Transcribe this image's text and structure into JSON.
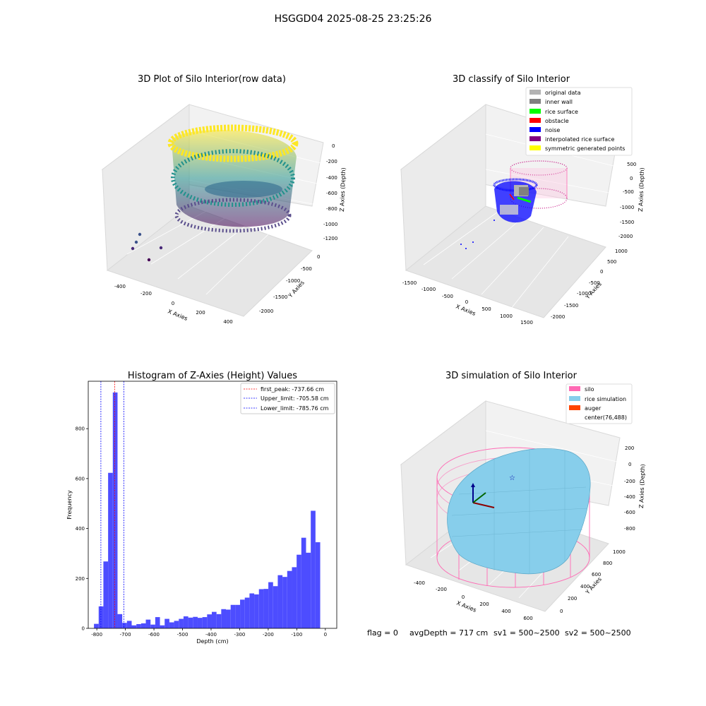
{
  "suptitle": "HSGGD04 2025-08-25 23:25:26",
  "footer": {
    "flag": "flag = 0",
    "avg_depth": "avgDepth = 717 cm",
    "sv1": "sv1 = 500~2500",
    "sv2": "sv2 = 500~2500"
  },
  "colors": {
    "viridis_low": "#440154",
    "viridis_mid": "#21918c",
    "viridis_high": "#fde725",
    "original_data": "#b3b3b3",
    "inner_wall": "#808080",
    "rice_surface": "#00ff00",
    "obstacle": "#ff0000",
    "noise": "#0000ff",
    "interpolated_rice_surface": "#800080",
    "symmetric_generated_points": "#ffff00",
    "silo": "#ff69b4",
    "rice_simulation": "#87ceeb",
    "auger": "#ff4500",
    "histogram_bar": "#4d4dff",
    "first_peak_line": "#ff0000",
    "limit_lines": "#0000ff"
  },
  "chart_data": [
    {
      "type": "scatter",
      "title": "3D Plot of Silo Interior(row data)",
      "xlabel": "X Axies",
      "ylabel": "Y Axies",
      "zlabel": "Z Axies (Depth)",
      "x_ticks": [
        "-400",
        "-200",
        "0",
        "200",
        "400"
      ],
      "y_ticks": [
        "0",
        "-500",
        "-1000",
        "-1500",
        "-2000"
      ],
      "z_ticks": [
        "0",
        "-200",
        "-400",
        "-600",
        "-800",
        "-1000",
        "-1200"
      ],
      "colormap": "viridis"
    },
    {
      "type": "scatter",
      "title": "3D classify of Silo Interior",
      "xlabel": "X Axies",
      "ylabel": "Y Axies",
      "zlabel": "Z Axies (Depth)",
      "x_ticks": [
        "-1500",
        "-1000",
        "-500",
        "0",
        "500",
        "1000",
        "1500"
      ],
      "y_ticks": [
        "1000",
        "500",
        "0",
        "-500",
        "-1000",
        "-1500",
        "-2000"
      ],
      "z_ticks": [
        "500",
        "0",
        "-500",
        "-1000",
        "-1500",
        "-2000"
      ],
      "legend": [
        {
          "label": "original data",
          "color": "#b3b3b3"
        },
        {
          "label": "inner wall",
          "color": "#808080"
        },
        {
          "label": "rice surface",
          "color": "#00ff00"
        },
        {
          "label": "obstacle",
          "color": "#ff0000"
        },
        {
          "label": "noise",
          "color": "#0000ff"
        },
        {
          "label": "interpolated rice surface",
          "color": "#800080"
        },
        {
          "label": "symmetric generated points",
          "color": "#ffff00"
        }
      ],
      "legend_position": "top-right"
    },
    {
      "type": "bar",
      "title": "Histogram of Z-Axies (Height) Values",
      "xlabel": "Depth (cm)",
      "ylabel": "Frequency",
      "xlim": [
        -830,
        40
      ],
      "ylim": [
        0,
        990
      ],
      "x_ticks": [
        -800,
        -700,
        -600,
        -500,
        -400,
        -300,
        -200,
        -100,
        0
      ],
      "y_ticks": [
        0,
        200,
        400,
        600,
        800
      ],
      "bin_start": -810,
      "bin_width": 16.5,
      "values": [
        18,
        88,
        268,
        623,
        945,
        57,
        22,
        30,
        12,
        17,
        20,
        35,
        15,
        45,
        12,
        38,
        24,
        30,
        38,
        48,
        43,
        46,
        42,
        45,
        56,
        66,
        57,
        77,
        75,
        94,
        94,
        115,
        123,
        140,
        136,
        157,
        158,
        185,
        169,
        213,
        206,
        230,
        245,
        295,
        363,
        303,
        471,
        345
      ],
      "vlines": [
        {
          "label": "first_peak: -737.66 cm",
          "x": -737.66,
          "color": "#ff0000"
        },
        {
          "label": "Upper_limit: -705.58 cm",
          "x": -705.58,
          "color": "#0000ff"
        },
        {
          "label": "Lower_limit: -785.76 cm",
          "x": -785.76,
          "color": "#0000ff"
        }
      ],
      "legend_position": "top-right"
    },
    {
      "type": "area",
      "title": "3D simulation of Silo Interior",
      "xlabel": "X Axies",
      "ylabel": "Y Axies",
      "zlabel": "Z Axies (Depth)",
      "x_ticks": [
        "-400",
        "-200",
        "0",
        "200",
        "400",
        "600"
      ],
      "y_ticks": [
        "1000",
        "800",
        "600",
        "400",
        "200",
        "0"
      ],
      "z_ticks": [
        "200",
        "0",
        "-200",
        "-400",
        "-600",
        "-800"
      ],
      "legend": [
        {
          "label": "silo",
          "color": "#ff69b4"
        },
        {
          "label": "rice simulation",
          "color": "#87ceeb"
        },
        {
          "label": "auger",
          "color": "#ff4500"
        },
        {
          "label": "center(76,488)",
          "color": ""
        }
      ],
      "legend_position": "top-right"
    }
  ]
}
